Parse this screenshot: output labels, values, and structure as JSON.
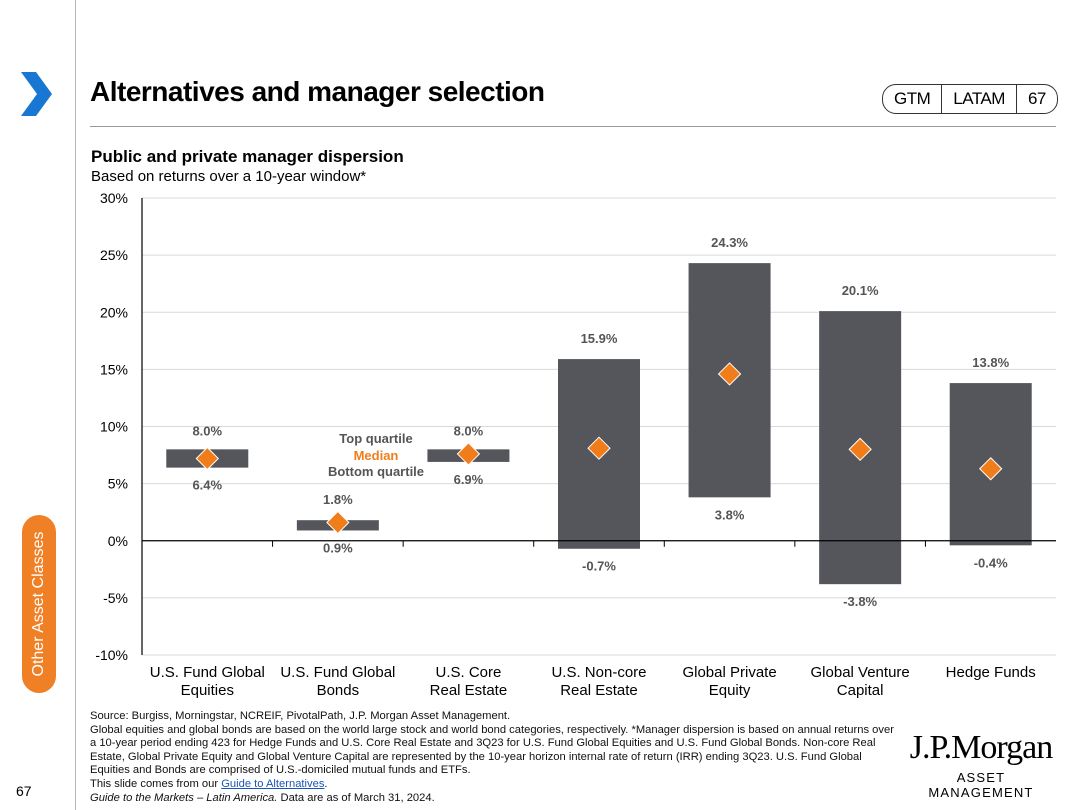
{
  "header": {
    "title": "Alternatives and manager selection",
    "badge": [
      "GTM",
      "LATAM",
      "67"
    ]
  },
  "sidebar": {
    "section_label": "Other Asset Classes",
    "page_number": "67"
  },
  "chart_data": {
    "type": "floating-bar",
    "title": "Public and private manager dispersion",
    "subtitle": "Based on returns over a 10-year window*",
    "ylim": [
      -10,
      30
    ],
    "yticks": [
      30,
      25,
      20,
      15,
      10,
      5,
      0,
      -5,
      -10
    ],
    "ytick_labels": [
      "30%",
      "25%",
      "20%",
      "15%",
      "10%",
      "5%",
      "0%",
      "-5%",
      "-10%"
    ],
    "categories": [
      [
        "U.S. Fund Global",
        "Equities"
      ],
      [
        "U.S. Fund Global",
        "Bonds"
      ],
      [
        "U.S. Core",
        "Real Estate"
      ],
      [
        "U.S. Non-core",
        "Real Estate"
      ],
      [
        "Global Private",
        "Equity"
      ],
      [
        "Global Venture",
        "Capital"
      ],
      [
        "Hedge Funds"
      ]
    ],
    "top_quartile": [
      8.0,
      1.8,
      8.0,
      15.9,
      24.3,
      20.1,
      13.8
    ],
    "bottom_quartile": [
      6.4,
      0.9,
      6.9,
      -0.7,
      3.8,
      -3.8,
      -0.4
    ],
    "median": [
      7.2,
      1.6,
      7.6,
      8.1,
      14.6,
      8.0,
      6.3
    ],
    "top_labels": [
      "8.0%",
      "1.8%",
      "8.0%",
      "15.9%",
      "24.3%",
      "20.1%",
      "13.8%"
    ],
    "bottom_labels": [
      "6.4%",
      "0.9%",
      "6.9%",
      "-0.7%",
      "3.8%",
      "-3.8%",
      "-0.4%"
    ],
    "legend": [
      "Top quartile",
      "Median",
      "Bottom quartile"
    ],
    "colors": {
      "bar": "#54565b",
      "median": "#f07d1a",
      "axis": "#000000",
      "grid": "#d9d9d9",
      "label": "#555555"
    }
  },
  "footnotes": {
    "source": "Source: Burgiss, Morningstar, NCREIF, PivotalPath, J.P. Morgan Asset Management.",
    "body": "Global equities and global bonds are based on the world large stock and world bond categories, respectively. *Manager dispersion is based on annual returns over a 10-year period ending 423 for Hedge Funds and U.S. Core Real Estate and 3Q23 for U.S. Fund Global Equities and U.S. Fund Global Bonds. Non-core Real Estate, Global Private Equity and Global Venture Capital are represented by the 10-year horizon internal rate of return (IRR) ending 3Q23. U.S. Fund Global Equities and Bonds are comprised of U.S.-domiciled mutual funds and ETFs.",
    "slide_from": "This slide comes from our",
    "slide_link": "Guide to Alternatives",
    "slide_end": ".",
    "guide_title": "Guide to the Markets – Latin America.",
    "data_date": "Data are as of March 31, 2024."
  },
  "logo": {
    "name": "J.P.Morgan",
    "sub": "ASSET MANAGEMENT"
  }
}
